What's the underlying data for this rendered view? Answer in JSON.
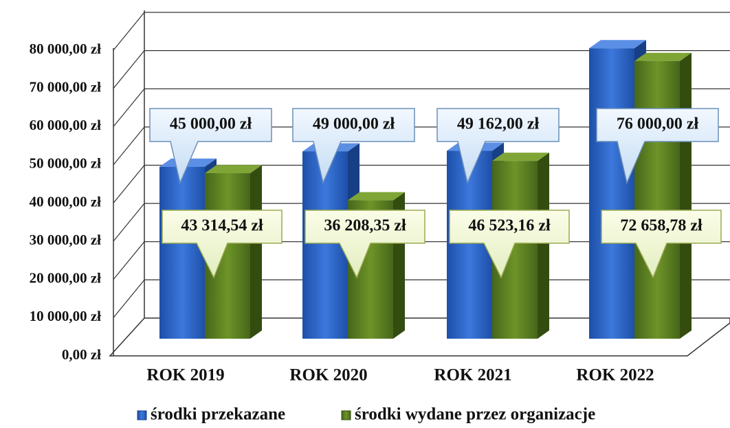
{
  "chart_data": {
    "type": "bar3d",
    "categories": [
      "ROK 2019",
      "ROK 2020",
      "ROK 2021",
      "ROK 2022"
    ],
    "series": [
      {
        "name": "środki przekazane",
        "color": "#2f63c4",
        "values": [
          45000,
          49000,
          49162,
          76000
        ],
        "value_labels": [
          "45 000,00 zł",
          "49 000,00 zł",
          "49 162,00 zł",
          "76 000,00 zł"
        ]
      },
      {
        "name": "środki wydane przez organizacje",
        "color": "#5b7f1e",
        "values": [
          43314.54,
          36208.35,
          46523.16,
          72658.78
        ],
        "value_labels": [
          "43 314,54 zł",
          "36 208,35 zł",
          "46 523,16 zł",
          "72 658,78 zł"
        ]
      }
    ],
    "ylim": [
      0,
      80000
    ],
    "yticks": [
      {
        "value": 0,
        "label": "0,00 zł"
      },
      {
        "value": 10000,
        "label": "10 000,00 zł"
      },
      {
        "value": 20000,
        "label": "20 000,00 zł"
      },
      {
        "value": 30000,
        "label": "30 000,00 zł"
      },
      {
        "value": 40000,
        "label": "40 000,00 zł"
      },
      {
        "value": 50000,
        "label": "50 000,00 zł"
      },
      {
        "value": 60000,
        "label": "60 000,00 zł"
      },
      {
        "value": 70000,
        "label": "70 000,00 zł"
      },
      {
        "value": 80000,
        "label": "80 000,00 zł"
      }
    ],
    "grid": true,
    "legend": "bottom"
  }
}
